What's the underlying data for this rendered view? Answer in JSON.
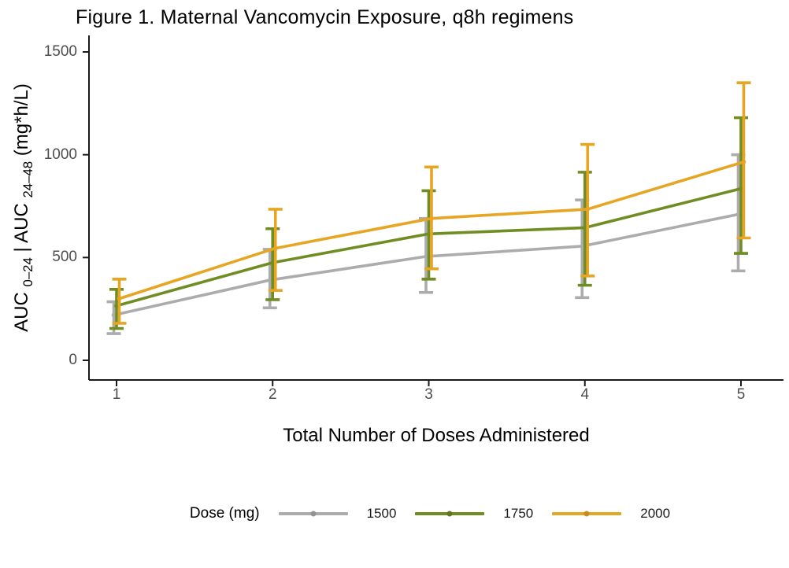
{
  "colors": {
    "background": "#FFFFFF",
    "axis": "#1A1A1A",
    "tick_label": "#4D4D4D",
    "text": "#000000",
    "series_1500": "#ACACAC",
    "series_1750": "#6F8D22",
    "series_2000": "#E7A524"
  },
  "chart_data": {
    "type": "line",
    "title": "Figure 1. Maternal Vancomycin Exposure, q8h regimens",
    "xlabel": "Total Number of Doses Administered",
    "ylabel": "AUC 0–24 | AUC 24–48 (mg*h/L)",
    "ylabel_parts": [
      {
        "text": "AUC "
      },
      {
        "text": "0–24",
        "sub": true
      },
      {
        "text": " | AUC "
      },
      {
        "text": "24–48",
        "sub": true
      },
      {
        "text": " (mg*h/L)"
      }
    ],
    "legend_title": "Dose (mg)",
    "legend_position": "bottom",
    "grid": false,
    "error_bars": true,
    "x": [
      1,
      2,
      3,
      4,
      5
    ],
    "x_tick_labels": [
      "1",
      "2",
      "3",
      "4",
      "5"
    ],
    "y_ticks": [
      0,
      500,
      1000,
      1500
    ],
    "ylim": [
      0,
      1580
    ],
    "series": [
      {
        "name": "1500",
        "color": "#ACACAC",
        "values": [
          220,
          390,
          505,
          555,
          710
        ],
        "lower": [
          130,
          255,
          330,
          305,
          435
        ],
        "upper": [
          285,
          540,
          690,
          780,
          1000
        ]
      },
      {
        "name": "1750",
        "color": "#6F8D22",
        "values": [
          265,
          475,
          615,
          645,
          835
        ],
        "lower": [
          155,
          295,
          395,
          365,
          520
        ],
        "upper": [
          345,
          640,
          825,
          915,
          1180
        ]
      },
      {
        "name": "2000",
        "color": "#E7A524",
        "values": [
          300,
          545,
          690,
          735,
          965
        ],
        "lower": [
          180,
          340,
          445,
          410,
          595
        ],
        "upper": [
          395,
          735,
          940,
          1050,
          1350
        ]
      }
    ]
  }
}
